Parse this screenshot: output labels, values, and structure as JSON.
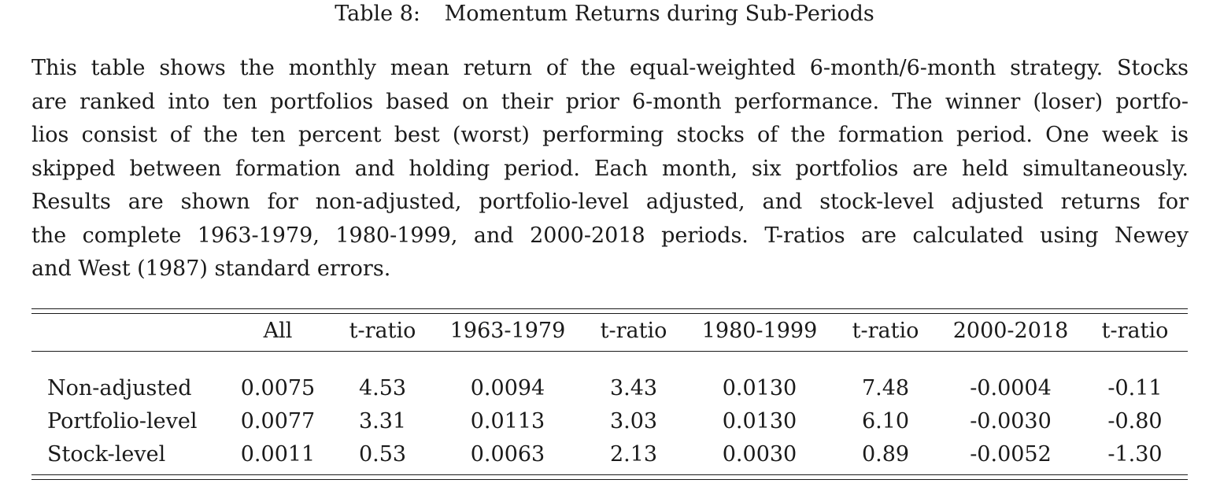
{
  "caption": {
    "label": "Table 8:",
    "title": "Momentum Returns during Sub-Periods"
  },
  "description": {
    "lines": [
      "This table shows the monthly mean return of the equal-weighted 6-month/6-month strategy. Stocks",
      "are ranked into ten portfolios based on their prior 6-month performance. The winner (loser) portfo-",
      "lios consist of the ten percent best (worst) performing stocks of the formation period. One week is",
      "skipped between formation and holding period. Each month, six portfolios are held simultaneously.",
      "Results are shown for non-adjusted, portfolio-level adjusted, and stock-level adjusted returns for",
      "the complete 1963-1979, 1980-1999, and 2000-2018 periods. T-ratios are calculated using Newey",
      "and West (1987) standard errors."
    ]
  },
  "table": {
    "headers": [
      "All",
      "t-ratio",
      "1963-1979",
      "t-ratio",
      "1980-1999",
      "t-ratio",
      "2000-2018",
      "t-ratio"
    ],
    "rows": [
      {
        "label": "Non-adjusted",
        "values": [
          "0.0075",
          "4.53",
          "0.0094",
          "3.43",
          "0.0130",
          "7.48",
          "-0.0004",
          "-0.11"
        ]
      },
      {
        "label": "Portfolio-level",
        "values": [
          "0.0077",
          "3.31",
          "0.0113",
          "3.03",
          "0.0130",
          "6.10",
          "-0.0030",
          "-0.80"
        ]
      },
      {
        "label": "Stock-level",
        "values": [
          "0.0011",
          "0.53",
          "0.0063",
          "2.13",
          "0.0030",
          "0.89",
          "-0.0052",
          "-1.30"
        ]
      }
    ]
  }
}
